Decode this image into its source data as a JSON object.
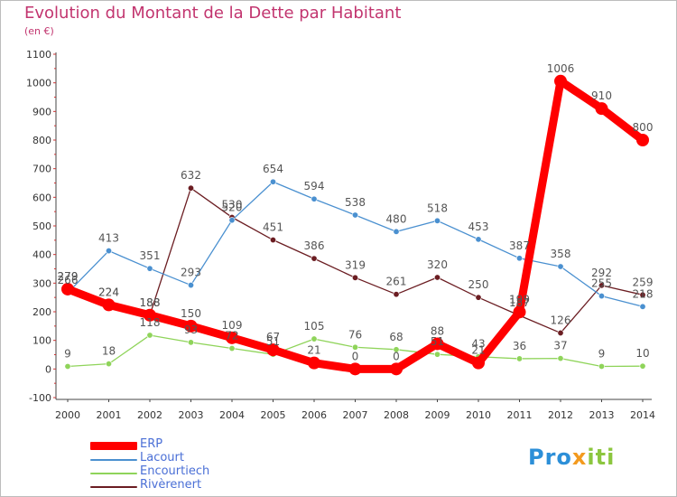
{
  "chart_data": {
    "type": "line",
    "title": "Evolution du Montant de la Dette par Habitant",
    "subtitle": "(en €)",
    "xlabel": "",
    "ylabel": "",
    "ylim": [
      -100,
      1100
    ],
    "yticks": [
      -100,
      0,
      100,
      200,
      300,
      400,
      500,
      600,
      700,
      800,
      900,
      1000,
      1100
    ],
    "x": [
      "2000",
      "2001",
      "2002",
      "2003",
      "2004",
      "2005",
      "2006",
      "2007",
      "2008",
      "2009",
      "2010",
      "2011",
      "2012",
      "2013",
      "2014"
    ],
    "grid": false,
    "legend_position": "bottom-left",
    "series": [
      {
        "name": "Rivèrenert",
        "color": "#6b1d22",
        "values": [
          279,
          224,
          188,
          632,
          530,
          451,
          386,
          319,
          261,
          320,
          250,
          187,
          126,
          292,
          259
        ]
      },
      {
        "name": "Lacourt",
        "color": "#4a90d0",
        "values": [
          266,
          413,
          351,
          293,
          520,
          654,
          594,
          538,
          480,
          518,
          453,
          387,
          358,
          255,
          218
        ]
      },
      {
        "name": "Encourtiech",
        "color": "#8fd45a",
        "values": [
          9,
          18,
          118,
          93,
          72,
          51,
          105,
          76,
          68,
          51,
          43,
          36,
          37,
          9,
          10
        ]
      },
      {
        "name": "ERP",
        "color": "#ff0000",
        "values": [
          279,
          224,
          188,
          150,
          109,
          67,
          21,
          0,
          0,
          88,
          21,
          199,
          1006,
          910,
          800
        ]
      }
    ],
    "legend_order": [
      "ERP",
      "Lacourt",
      "Encourtiech",
      "Rivèrenert"
    ]
  },
  "logo": {
    "p1": "Pro",
    "p2": "x",
    "p3": "iti"
  }
}
